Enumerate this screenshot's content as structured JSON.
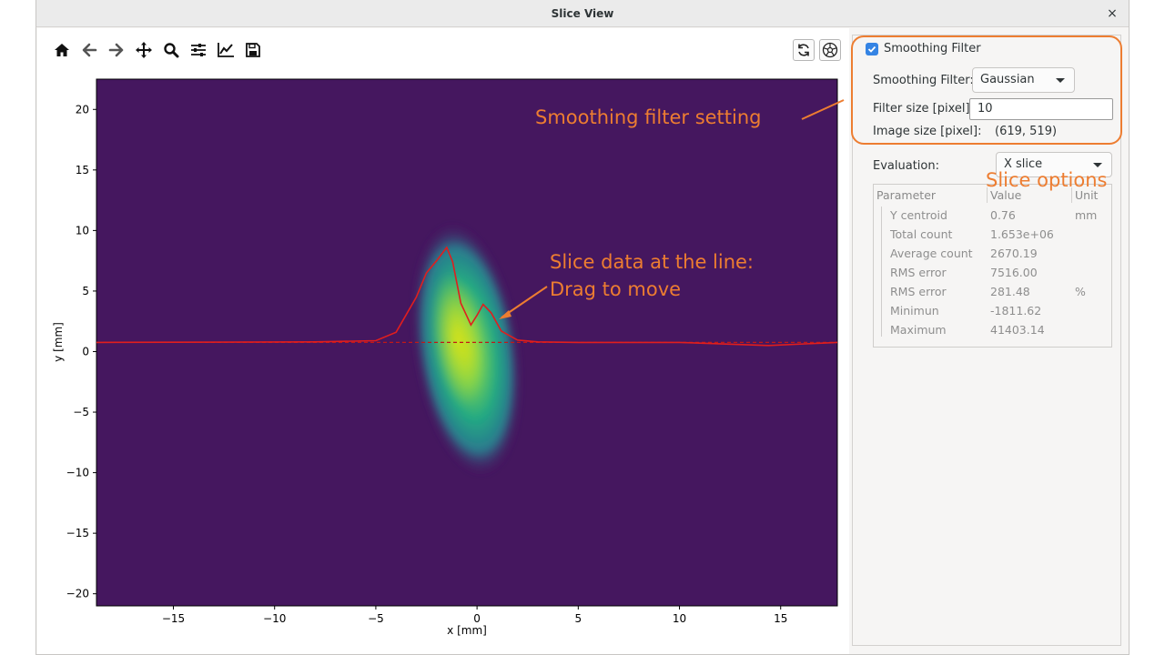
{
  "window": {
    "title": "Slice View",
    "close_glyph": "×"
  },
  "toolbar": {
    "tools": [
      "home-icon",
      "back-arrow-icon",
      "forward-arrow-icon",
      "pan-icon",
      "zoom-icon",
      "configure-subplots-icon",
      "edit-axis-icon",
      "save-icon"
    ],
    "right_buttons": [
      "refresh-icon",
      "colormap-icon"
    ]
  },
  "plot": {
    "xlabel": "x [mm]",
    "ylabel": "y [mm]",
    "x_ticks": [
      "−15",
      "−10",
      "−5",
      "0",
      "5",
      "10",
      "15"
    ],
    "y_ticks": [
      "20",
      "15",
      "10",
      "5",
      "0",
      "−5",
      "−10",
      "−15",
      "−20"
    ],
    "colors": {
      "background": "#45175f",
      "slice_line": "#e01e1e",
      "beam_peak": "#b8de29",
      "beam_mid": "#23a983"
    }
  },
  "chart_data": {
    "type": "heatmap",
    "xlim": [
      -18.8,
      17.8
    ],
    "ylim": [
      -21,
      22.5
    ],
    "slice_y": 0.76,
    "slice_profile": {
      "x": [
        -18.8,
        -8,
        -5,
        -4,
        -3,
        -2.5,
        -2,
        -1.5,
        -1.2,
        -0.8,
        -0.3,
        0,
        0.3,
        0.7,
        1.2,
        2,
        3,
        5,
        10,
        14.4,
        17.8
      ],
      "y": [
        0.76,
        0.8,
        0.9,
        1.6,
        4.5,
        6.5,
        7.5,
        8.6,
        7.4,
        4.0,
        2.2,
        3.0,
        3.9,
        3.2,
        1.7,
        0.95,
        0.8,
        0.76,
        0.76,
        0.5,
        0.76
      ]
    }
  },
  "panel": {
    "smoothing_checkbox_label": "Smoothing Filter",
    "smoothing_filter_label": "Smoothing Filter:",
    "smoothing_filter_value": "Gaussian",
    "filter_size_label": "Filter size [pixel]:",
    "filter_size_value": "10",
    "image_size_label": "Image size [pixel]:",
    "image_size_value": "(619, 519)",
    "evaluation_label": "Evaluation:",
    "evaluation_value": "X slice",
    "table": {
      "headers": [
        "Parameter",
        "Value",
        "Unit"
      ],
      "rows": [
        {
          "param": "Y centroid",
          "value": "0.76",
          "unit": "mm"
        },
        {
          "param": "Total count",
          "value": "1.653e+06",
          "unit": ""
        },
        {
          "param": "Average count",
          "value": "2670.19",
          "unit": ""
        },
        {
          "param": "RMS error",
          "value": "7516.00",
          "unit": ""
        },
        {
          "param": "RMS error",
          "value": "281.48",
          "unit": "%"
        },
        {
          "param": "Minimun",
          "value": "-1811.62",
          "unit": ""
        },
        {
          "param": "Maximum",
          "value": "41403.14",
          "unit": ""
        }
      ]
    }
  },
  "annotations": {
    "smoothing": "Smoothing filter setting",
    "slice_options": "Slice options",
    "slice_data_line1": "Slice data at the line:",
    "slice_data_line2": "Drag to move"
  }
}
